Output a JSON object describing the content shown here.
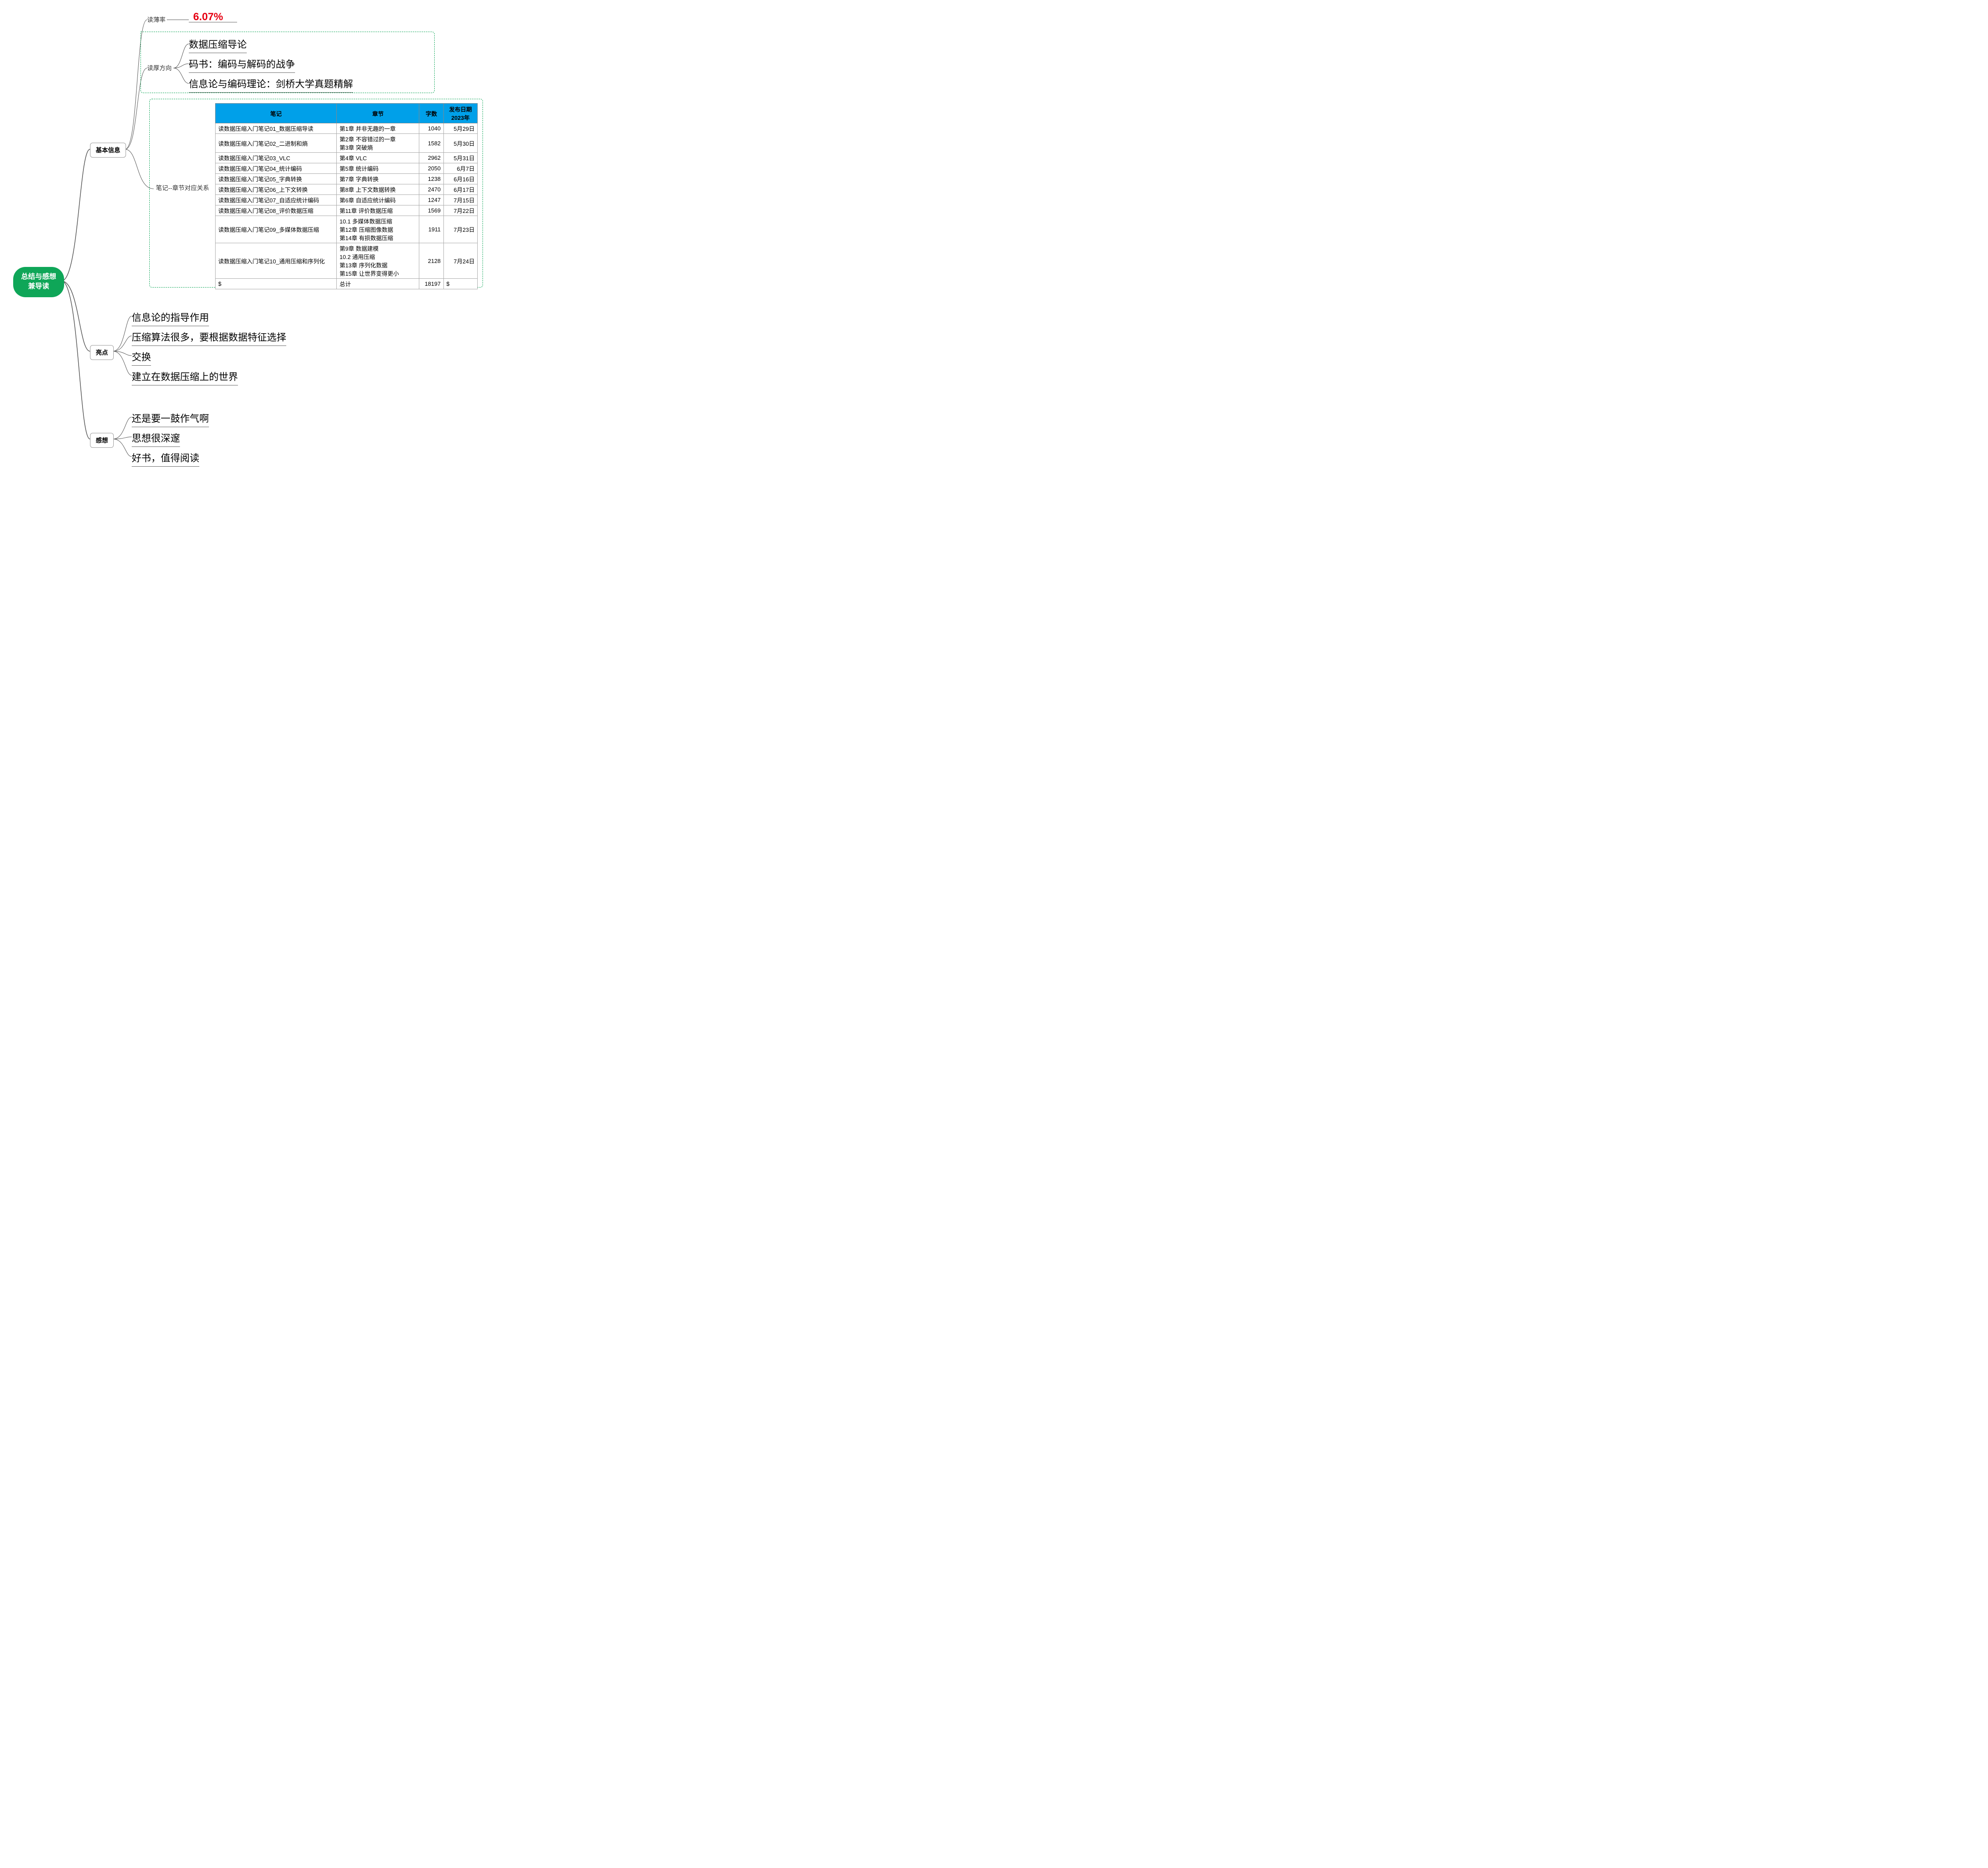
{
  "root": {
    "line1": "总结与感想",
    "line2": "兼导读",
    "bg_color": "#0fa658",
    "text_color": "#ffffff"
  },
  "branches": {
    "basic_info": {
      "label": "基本信息"
    },
    "highlights": {
      "label": "亮点"
    },
    "thoughts": {
      "label": "感想"
    }
  },
  "basic_info": {
    "thin_rate": {
      "label": "读薄率",
      "value": "6.07%",
      "value_color": "#e60012"
    },
    "thick_dir": {
      "label": "读厚方向",
      "items": [
        "数据压缩导论",
        "码书：编码与解码的战争",
        "信息论与编码理论：剑桥大学真题精解"
      ]
    },
    "notes_rel": {
      "label": "笔记--章节对应关系",
      "columns": [
        "笔记",
        "章节",
        "字数",
        "发布日期 2023年"
      ],
      "rows": [
        {
          "note": "读数据压缩入门笔记01_数据压缩导读",
          "chapter": "第1章  并非无趣的一章",
          "words": 1040,
          "date": "5月29日"
        },
        {
          "note": "读数据压缩入门笔记02_二进制和熵",
          "chapter": "第2章  不容错过的一章\n第3章  突破熵",
          "words": 1582,
          "date": "5月30日"
        },
        {
          "note": "读数据压缩入门笔记03_VLC",
          "chapter": "第4章  VLC",
          "words": 2962,
          "date": "5月31日"
        },
        {
          "note": "读数据压缩入门笔记04_统计编码",
          "chapter": "第5章  统计编码",
          "words": 2050,
          "date": "6月7日"
        },
        {
          "note": "读数据压缩入门笔记05_字典转换",
          "chapter": "第7章  字典转换",
          "words": 1238,
          "date": "6月16日"
        },
        {
          "note": "读数据压缩入门笔记06_上下文转换",
          "chapter": "第8章  上下文数据转换",
          "words": 2470,
          "date": "6月17日"
        },
        {
          "note": "读数据压缩入门笔记07_自适应统计编码",
          "chapter": "第6章  自适应统计编码",
          "words": 1247,
          "date": "7月15日"
        },
        {
          "note": "读数据压缩入门笔记08_评价数据压缩",
          "chapter": "第11章  评价数据压缩",
          "words": 1569,
          "date": "7月22日"
        },
        {
          "note": "读数据压缩入门笔记09_多媒体数据压缩",
          "chapter": "10.1 多媒体数据压缩\n第12章  压缩图像数据\n第14章  有损数据压缩",
          "words": 1911,
          "date": "7月23日"
        },
        {
          "note": "读数据压缩入门笔记10_通用压缩和序列化",
          "chapter": "第9章  数据建模\n10.2  通用压缩\n第13章  序列化数据\n第15章  让世界变得更小",
          "words": 2128,
          "date": "7月24日"
        }
      ],
      "total_row": {
        "note": "$",
        "chapter": "总计",
        "words": 18197,
        "date": "$"
      }
    }
  },
  "highlights": {
    "items": [
      "信息论的指导作用",
      "压缩算法很多，要根据数据特征选择",
      "交换",
      "建立在数据压缩上的世界"
    ]
  },
  "thoughts": {
    "items": [
      "还是要一鼓作气啊",
      "思想很深邃",
      "好书，值得阅读"
    ]
  },
  "style": {
    "table_header_bg": "#00a0e9",
    "dashed_border_color": "#0fa658",
    "connector_color": "#555555",
    "leaf_fontsize": 22,
    "branch_fontsize": 14
  }
}
